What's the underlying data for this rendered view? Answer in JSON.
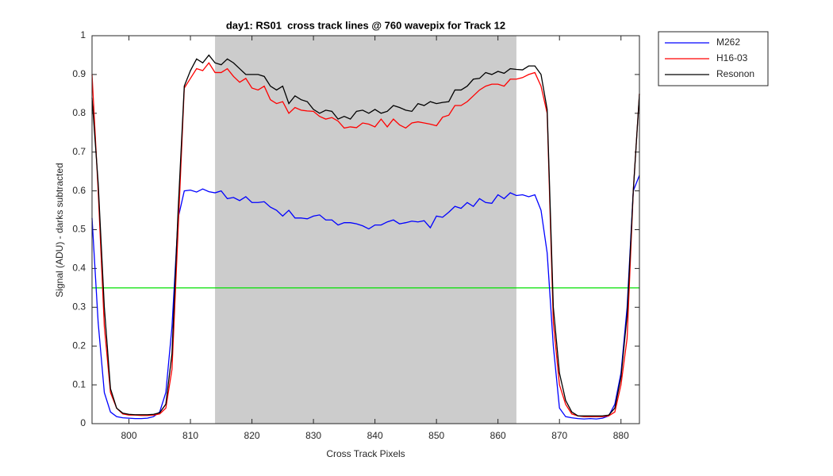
{
  "chart_data": {
    "type": "line",
    "title": "day1: RS01  cross track lines @ 760 wavepix for Track 12",
    "x_label": "Cross Track Pixels",
    "y_label": "Signal (ADU) - darks subtracted",
    "xlim": [
      794,
      883
    ],
    "xticks": [
      800,
      810,
      820,
      830,
      840,
      850,
      860,
      870,
      880
    ],
    "ylim": [
      0,
      1
    ],
    "yticks": [
      0,
      0.1,
      0.2,
      0.3,
      0.4,
      0.5,
      0.6,
      0.7,
      0.8,
      0.9,
      1
    ],
    "grid": false,
    "legend": "outside-top-right",
    "shaded_region": [
      814,
      863
    ],
    "shaded_color": "#cccccc",
    "hline": 0.35,
    "hline_color": "#00e000",
    "x": [
      794,
      795,
      796,
      797,
      798,
      799,
      800,
      801,
      802,
      803,
      804,
      805,
      806,
      807,
      808,
      809,
      810,
      811,
      812,
      813,
      814,
      815,
      816,
      817,
      818,
      819,
      820,
      821,
      822,
      823,
      824,
      825,
      826,
      827,
      828,
      829,
      830,
      831,
      832,
      833,
      834,
      835,
      836,
      837,
      838,
      839,
      840,
      841,
      842,
      843,
      844,
      845,
      846,
      847,
      848,
      849,
      850,
      851,
      852,
      853,
      854,
      855,
      856,
      857,
      858,
      859,
      860,
      861,
      862,
      863,
      864,
      865,
      866,
      867,
      868,
      869,
      870,
      871,
      872,
      873,
      874,
      875,
      876,
      877,
      878,
      879,
      880,
      881,
      882,
      883
    ],
    "series": [
      {
        "name": "M262",
        "color": "#0000ff",
        "values": [
          0.53,
          0.26,
          0.08,
          0.03,
          0.018,
          0.015,
          0.014,
          0.013,
          0.013,
          0.014,
          0.018,
          0.03,
          0.08,
          0.25,
          0.53,
          0.6,
          0.602,
          0.597,
          0.605,
          0.598,
          0.595,
          0.6,
          0.58,
          0.583,
          0.575,
          0.585,
          0.57,
          0.57,
          0.572,
          0.558,
          0.55,
          0.535,
          0.55,
          0.53,
          0.53,
          0.528,
          0.535,
          0.538,
          0.525,
          0.525,
          0.512,
          0.518,
          0.518,
          0.515,
          0.51,
          0.502,
          0.512,
          0.512,
          0.52,
          0.525,
          0.515,
          0.518,
          0.522,
          0.52,
          0.523,
          0.505,
          0.535,
          0.532,
          0.545,
          0.56,
          0.555,
          0.57,
          0.56,
          0.58,
          0.57,
          0.568,
          0.59,
          0.58,
          0.595,
          0.588,
          0.59,
          0.585,
          0.59,
          0.55,
          0.44,
          0.2,
          0.04,
          0.018,
          0.015,
          0.013,
          0.012,
          0.013,
          0.012,
          0.014,
          0.02,
          0.05,
          0.13,
          0.3,
          0.6,
          0.64
        ]
      },
      {
        "name": "H16-03",
        "color": "#ff0000",
        "values": [
          0.9,
          0.6,
          0.25,
          0.08,
          0.04,
          0.025,
          0.022,
          0.022,
          0.021,
          0.021,
          0.022,
          0.025,
          0.04,
          0.14,
          0.5,
          0.865,
          0.89,
          0.915,
          0.91,
          0.93,
          0.905,
          0.905,
          0.915,
          0.895,
          0.88,
          0.89,
          0.865,
          0.86,
          0.87,
          0.835,
          0.825,
          0.83,
          0.8,
          0.815,
          0.808,
          0.806,
          0.805,
          0.792,
          0.785,
          0.789,
          0.78,
          0.762,
          0.765,
          0.763,
          0.775,
          0.772,
          0.765,
          0.785,
          0.765,
          0.785,
          0.77,
          0.762,
          0.775,
          0.778,
          0.775,
          0.772,
          0.768,
          0.79,
          0.795,
          0.82,
          0.82,
          0.83,
          0.845,
          0.86,
          0.87,
          0.875,
          0.875,
          0.87,
          0.888,
          0.888,
          0.892,
          0.9,
          0.905,
          0.87,
          0.8,
          0.26,
          0.1,
          0.05,
          0.025,
          0.02,
          0.018,
          0.018,
          0.018,
          0.018,
          0.02,
          0.03,
          0.1,
          0.22,
          0.6,
          0.85
        ]
      },
      {
        "name": "Resonon",
        "color": "#000000",
        "values": [
          0.84,
          0.62,
          0.3,
          0.09,
          0.04,
          0.027,
          0.024,
          0.023,
          0.023,
          0.023,
          0.024,
          0.028,
          0.05,
          0.18,
          0.55,
          0.87,
          0.91,
          0.94,
          0.93,
          0.95,
          0.93,
          0.925,
          0.94,
          0.93,
          0.915,
          0.9,
          0.9,
          0.9,
          0.895,
          0.87,
          0.86,
          0.87,
          0.825,
          0.845,
          0.835,
          0.83,
          0.81,
          0.8,
          0.808,
          0.805,
          0.785,
          0.792,
          0.785,
          0.805,
          0.808,
          0.8,
          0.81,
          0.8,
          0.805,
          0.82,
          0.815,
          0.808,
          0.805,
          0.825,
          0.82,
          0.83,
          0.825,
          0.828,
          0.83,
          0.86,
          0.86,
          0.87,
          0.888,
          0.89,
          0.905,
          0.9,
          0.908,
          0.903,
          0.915,
          0.913,
          0.912,
          0.922,
          0.922,
          0.9,
          0.81,
          0.3,
          0.13,
          0.06,
          0.03,
          0.02,
          0.02,
          0.02,
          0.02,
          0.02,
          0.022,
          0.04,
          0.12,
          0.28,
          0.6,
          0.85
        ]
      }
    ]
  }
}
